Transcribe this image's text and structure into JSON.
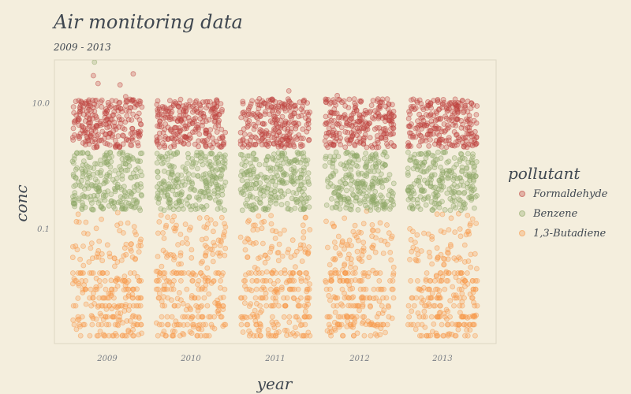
{
  "chart_data": {
    "type": "scatter",
    "title": "Air monitoring data",
    "subtitle": "2009 - 2013",
    "xlabel": "year",
    "ylabel": "conc",
    "x_categories": [
      "2009",
      "2010",
      "2011",
      "2012",
      "2013"
    ],
    "y_scale": "log",
    "y_range": [
      0.0015,
      50
    ],
    "y_ticks": [
      {
        "value": 10,
        "label": "10.0"
      },
      {
        "value": 0.1,
        "label": "0.1"
      }
    ],
    "grid": false,
    "legend": {
      "title": "pollutant",
      "position": "right"
    },
    "series": [
      {
        "name": "Formaldehyde",
        "color": "#c0443f",
        "typical_range": [
          2.0,
          12.0
        ],
        "outliers": [
          {
            "x": "2009",
            "y": 30.0
          },
          {
            "x": "2009",
            "y": 28.0
          },
          {
            "x": "2009",
            "y": 21.0
          },
          {
            "x": "2009",
            "y": 20.0
          },
          {
            "x": "2009",
            "y": 13.0
          },
          {
            "x": "2009",
            "y": 9.5
          },
          {
            "x": "2010",
            "y": 10.0
          },
          {
            "x": "2011",
            "y": 16.0
          },
          {
            "x": "2012",
            "y": 13.5
          },
          {
            "x": "2013",
            "y": 9.5
          }
        ]
      },
      {
        "name": "Benzene",
        "color": "#8ea868",
        "typical_range": [
          0.2,
          1.7
        ],
        "outliers": [
          {
            "x": "2009",
            "y": 46.0
          }
        ]
      },
      {
        "name": "1,3-Butadiene",
        "color": "#f7994a",
        "typical_range": [
          0.002,
          0.2
        ],
        "outliers": []
      }
    ]
  }
}
